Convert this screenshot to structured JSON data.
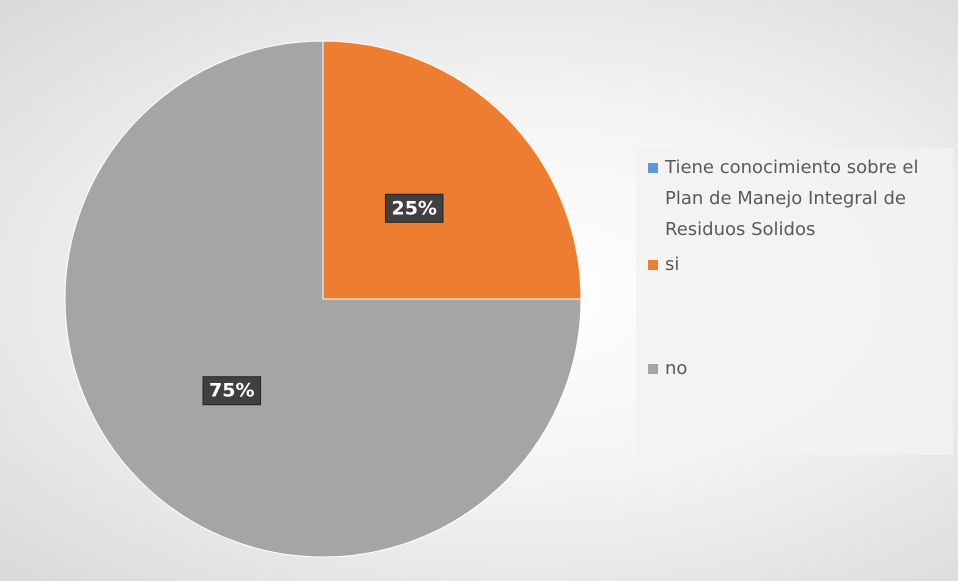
{
  "chart_data": {
    "type": "pie",
    "categories": [
      "Tiene conocimiento sobre el Plan de Manejo Integral de Residuos Solidos",
      "si",
      "no"
    ],
    "values": [
      0,
      25,
      75
    ],
    "value_labels": [
      null,
      "25%",
      "75%"
    ],
    "colors": [
      "#5b9bd5",
      "#ed7d31",
      "#a5a5a5"
    ],
    "legend": "right"
  }
}
